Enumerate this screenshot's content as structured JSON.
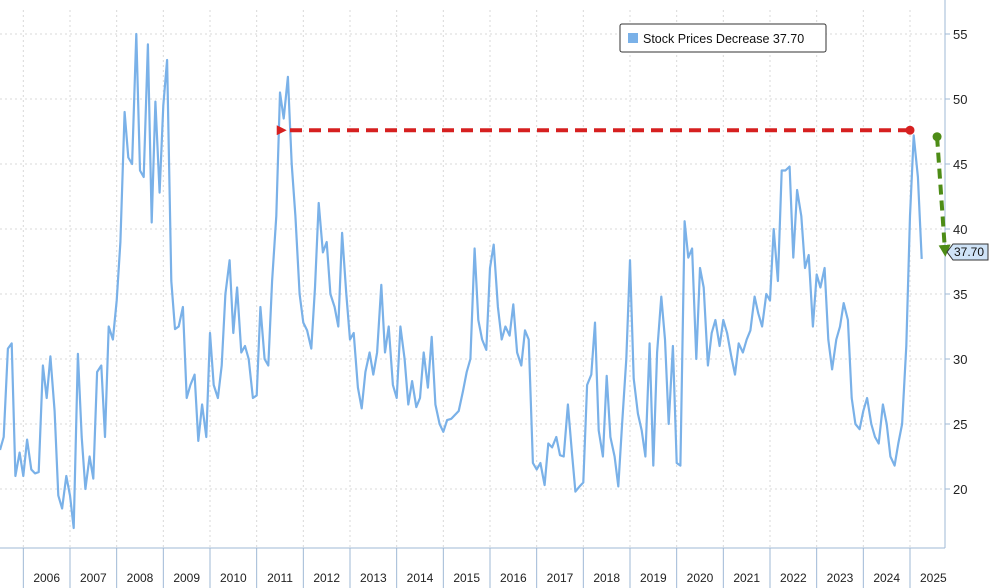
{
  "chart_data": {
    "type": "line",
    "title": "",
    "xlabel": "",
    "ylabel": "",
    "ylim": [
      15,
      56
    ],
    "xlim": [
      2005.5,
      2025.75
    ],
    "yticks": [
      20,
      25,
      30,
      35,
      40,
      45,
      50,
      55
    ],
    "year_labels": [
      "2006",
      "2007",
      "2008",
      "2009",
      "2010",
      "2011",
      "2012",
      "2013",
      "2014",
      "2015",
      "2016",
      "2017",
      "2018",
      "2019",
      "2020",
      "2021",
      "2022",
      "2023",
      "2024",
      "2025"
    ],
    "grid": true,
    "y_axis_side": "right",
    "legend": {
      "placement": "top-right"
    },
    "series": [
      {
        "name": "Stock Prices Decrease",
        "legend_label": "Stock Prices Decrease 37.70",
        "last_value_label": "37.70",
        "color": "#7ab1e8",
        "points": [
          [
            2005.5,
            23.0
          ],
          [
            2005.58,
            24.0
          ],
          [
            2005.67,
            30.8
          ],
          [
            2005.75,
            31.2
          ],
          [
            2005.83,
            21.0
          ],
          [
            2005.92,
            22.8
          ],
          [
            2006.0,
            21.0
          ],
          [
            2006.08,
            23.8
          ],
          [
            2006.17,
            21.5
          ],
          [
            2006.25,
            21.2
          ],
          [
            2006.33,
            21.3
          ],
          [
            2006.42,
            29.5
          ],
          [
            2006.5,
            27.0
          ],
          [
            2006.58,
            30.2
          ],
          [
            2006.67,
            26.0
          ],
          [
            2006.75,
            19.5
          ],
          [
            2006.83,
            18.5
          ],
          [
            2006.92,
            21.0
          ],
          [
            2007.0,
            19.5
          ],
          [
            2007.08,
            17.0
          ],
          [
            2007.17,
            30.4
          ],
          [
            2007.25,
            24.0
          ],
          [
            2007.33,
            20.0
          ],
          [
            2007.42,
            22.5
          ],
          [
            2007.5,
            20.8
          ],
          [
            2007.58,
            29.0
          ],
          [
            2007.67,
            29.5
          ],
          [
            2007.75,
            24.0
          ],
          [
            2007.83,
            32.5
          ],
          [
            2007.92,
            31.5
          ],
          [
            2008.0,
            34.5
          ],
          [
            2008.08,
            39.0
          ],
          [
            2008.17,
            49.0
          ],
          [
            2008.25,
            45.5
          ],
          [
            2008.33,
            45.0
          ],
          [
            2008.42,
            55.0
          ],
          [
            2008.5,
            44.5
          ],
          [
            2008.58,
            44.0
          ],
          [
            2008.67,
            54.2
          ],
          [
            2008.75,
            40.5
          ],
          [
            2008.83,
            49.8
          ],
          [
            2008.92,
            42.8
          ],
          [
            2009.0,
            49.5
          ],
          [
            2009.08,
            53.0
          ],
          [
            2009.17,
            36.0
          ],
          [
            2009.25,
            32.3
          ],
          [
            2009.33,
            32.5
          ],
          [
            2009.42,
            34.0
          ],
          [
            2009.5,
            27.0
          ],
          [
            2009.58,
            28.0
          ],
          [
            2009.67,
            28.8
          ],
          [
            2009.75,
            23.7
          ],
          [
            2009.83,
            26.5
          ],
          [
            2009.92,
            24.0
          ],
          [
            2010.0,
            32.0
          ],
          [
            2010.08,
            28.0
          ],
          [
            2010.17,
            27.0
          ],
          [
            2010.25,
            29.5
          ],
          [
            2010.33,
            35.0
          ],
          [
            2010.42,
            37.6
          ],
          [
            2010.5,
            32.0
          ],
          [
            2010.58,
            35.5
          ],
          [
            2010.67,
            30.5
          ],
          [
            2010.75,
            31.0
          ],
          [
            2010.83,
            30.0
          ],
          [
            2010.92,
            27.0
          ],
          [
            2011.0,
            27.2
          ],
          [
            2011.08,
            34.0
          ],
          [
            2011.17,
            30.0
          ],
          [
            2011.25,
            29.5
          ],
          [
            2011.33,
            36.0
          ],
          [
            2011.42,
            41.0
          ],
          [
            2011.5,
            50.5
          ],
          [
            2011.58,
            48.5
          ],
          [
            2011.67,
            51.7
          ],
          [
            2011.75,
            45.0
          ],
          [
            2011.83,
            41.0
          ],
          [
            2011.92,
            35.0
          ],
          [
            2012.0,
            32.8
          ],
          [
            2012.08,
            32.2
          ],
          [
            2012.17,
            30.8
          ],
          [
            2012.25,
            35.5
          ],
          [
            2012.33,
            42.0
          ],
          [
            2012.42,
            38.2
          ],
          [
            2012.5,
            39.0
          ],
          [
            2012.58,
            35.0
          ],
          [
            2012.67,
            34.0
          ],
          [
            2012.75,
            32.5
          ],
          [
            2012.83,
            39.7
          ],
          [
            2012.92,
            35.0
          ],
          [
            2013.0,
            31.5
          ],
          [
            2013.08,
            32.0
          ],
          [
            2013.17,
            27.8
          ],
          [
            2013.25,
            26.2
          ],
          [
            2013.33,
            29.0
          ],
          [
            2013.42,
            30.5
          ],
          [
            2013.5,
            28.8
          ],
          [
            2013.58,
            30.5
          ],
          [
            2013.67,
            35.7
          ],
          [
            2013.75,
            30.5
          ],
          [
            2013.83,
            32.5
          ],
          [
            2013.92,
            28.0
          ],
          [
            2014.0,
            27.0
          ],
          [
            2014.08,
            32.5
          ],
          [
            2014.17,
            30.0
          ],
          [
            2014.25,
            26.5
          ],
          [
            2014.33,
            28.3
          ],
          [
            2014.42,
            26.3
          ],
          [
            2014.5,
            27.0
          ],
          [
            2014.58,
            30.5
          ],
          [
            2014.67,
            27.8
          ],
          [
            2014.75,
            31.7
          ],
          [
            2014.83,
            26.5
          ],
          [
            2014.92,
            25.0
          ],
          [
            2015.0,
            24.4
          ],
          [
            2015.08,
            25.3
          ],
          [
            2015.17,
            25.4
          ],
          [
            2015.25,
            25.7
          ],
          [
            2015.33,
            26.0
          ],
          [
            2015.42,
            27.5
          ],
          [
            2015.5,
            29.0
          ],
          [
            2015.58,
            30.0
          ],
          [
            2015.67,
            38.5
          ],
          [
            2015.75,
            33.0
          ],
          [
            2015.83,
            31.5
          ],
          [
            2015.92,
            30.7
          ],
          [
            2016.0,
            37.0
          ],
          [
            2016.08,
            38.8
          ],
          [
            2016.17,
            34.0
          ],
          [
            2016.25,
            31.5
          ],
          [
            2016.33,
            32.5
          ],
          [
            2016.42,
            31.8
          ],
          [
            2016.5,
            34.2
          ],
          [
            2016.58,
            30.5
          ],
          [
            2016.67,
            29.5
          ],
          [
            2016.75,
            32.2
          ],
          [
            2016.83,
            31.5
          ],
          [
            2016.92,
            22.0
          ],
          [
            2017.0,
            21.5
          ],
          [
            2017.08,
            22.0
          ],
          [
            2017.17,
            20.3
          ],
          [
            2017.25,
            23.5
          ],
          [
            2017.33,
            23.2
          ],
          [
            2017.42,
            24.0
          ],
          [
            2017.5,
            22.6
          ],
          [
            2017.58,
            22.5
          ],
          [
            2017.67,
            26.5
          ],
          [
            2017.75,
            23.0
          ],
          [
            2017.83,
            19.8
          ],
          [
            2017.92,
            20.2
          ],
          [
            2018.0,
            20.5
          ],
          [
            2018.08,
            28.0
          ],
          [
            2018.17,
            28.8
          ],
          [
            2018.25,
            32.8
          ],
          [
            2018.33,
            24.5
          ],
          [
            2018.42,
            22.5
          ],
          [
            2018.5,
            28.7
          ],
          [
            2018.58,
            24.0
          ],
          [
            2018.67,
            22.5
          ],
          [
            2018.75,
            20.2
          ],
          [
            2018.83,
            25.0
          ],
          [
            2018.92,
            30.0
          ],
          [
            2019.0,
            37.6
          ],
          [
            2019.08,
            28.5
          ],
          [
            2019.17,
            25.8
          ],
          [
            2019.25,
            24.5
          ],
          [
            2019.33,
            22.5
          ],
          [
            2019.42,
            31.2
          ],
          [
            2019.5,
            21.8
          ],
          [
            2019.58,
            30.5
          ],
          [
            2019.67,
            34.8
          ],
          [
            2019.75,
            31.5
          ],
          [
            2019.83,
            25.0
          ],
          [
            2019.92,
            31.0
          ],
          [
            2020.0,
            22.0
          ],
          [
            2020.08,
            21.8
          ],
          [
            2020.17,
            40.6
          ],
          [
            2020.25,
            37.8
          ],
          [
            2020.33,
            38.5
          ],
          [
            2020.42,
            30.0
          ],
          [
            2020.5,
            37.0
          ],
          [
            2020.58,
            35.5
          ],
          [
            2020.67,
            29.5
          ],
          [
            2020.75,
            32.0
          ],
          [
            2020.83,
            33.0
          ],
          [
            2020.92,
            31.0
          ],
          [
            2021.0,
            33.0
          ],
          [
            2021.08,
            32.0
          ],
          [
            2021.17,
            30.2
          ],
          [
            2021.25,
            28.8
          ],
          [
            2021.33,
            31.2
          ],
          [
            2021.42,
            30.5
          ],
          [
            2021.5,
            31.5
          ],
          [
            2021.58,
            32.2
          ],
          [
            2021.67,
            34.8
          ],
          [
            2021.75,
            33.5
          ],
          [
            2021.83,
            32.5
          ],
          [
            2021.92,
            35.0
          ],
          [
            2022.0,
            34.5
          ],
          [
            2022.08,
            40.0
          ],
          [
            2022.17,
            36.0
          ],
          [
            2022.25,
            44.5
          ],
          [
            2022.33,
            44.5
          ],
          [
            2022.42,
            44.8
          ],
          [
            2022.5,
            37.8
          ],
          [
            2022.58,
            43.0
          ],
          [
            2022.67,
            41.0
          ],
          [
            2022.75,
            37.0
          ],
          [
            2022.83,
            38.0
          ],
          [
            2022.92,
            32.5
          ],
          [
            2023.0,
            36.5
          ],
          [
            2023.08,
            35.5
          ],
          [
            2023.17,
            37.0
          ],
          [
            2023.25,
            31.5
          ],
          [
            2023.33,
            29.2
          ],
          [
            2023.42,
            31.5
          ],
          [
            2023.5,
            32.5
          ],
          [
            2023.58,
            34.3
          ],
          [
            2023.67,
            33.0
          ],
          [
            2023.75,
            27.0
          ],
          [
            2023.83,
            25.0
          ],
          [
            2023.92,
            24.6
          ],
          [
            2024.0,
            26.0
          ],
          [
            2024.08,
            27.0
          ],
          [
            2024.17,
            25.0
          ],
          [
            2024.25,
            24.0
          ],
          [
            2024.33,
            23.5
          ],
          [
            2024.42,
            26.5
          ],
          [
            2024.5,
            25.0
          ],
          [
            2024.58,
            22.5
          ],
          [
            2024.67,
            21.8
          ],
          [
            2024.75,
            23.5
          ],
          [
            2024.83,
            25.0
          ],
          [
            2024.92,
            31.0
          ],
          [
            2025.0,
            41.0
          ],
          [
            2025.08,
            47.2
          ],
          [
            2025.17,
            44.0
          ],
          [
            2025.25,
            37.7
          ]
        ]
      }
    ],
    "annotations": [
      {
        "kind": "red-dashed-arrow",
        "color": "#d62020",
        "from": [
          2025.0,
          47.6
        ],
        "to": [
          2011.58,
          47.6
        ]
      },
      {
        "kind": "green-dashed-arrow",
        "color": "#4d8c16",
        "from": [
          2025.58,
          47.1
        ],
        "to": [
          2025.75,
          37.7
        ]
      }
    ]
  }
}
